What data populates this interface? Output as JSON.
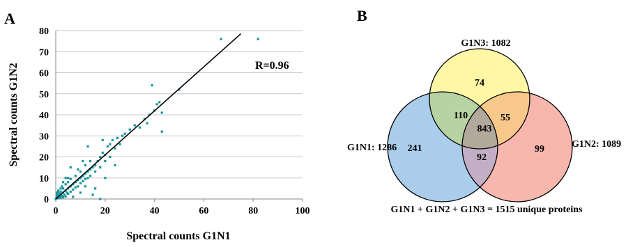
{
  "chart_data": [
    {
      "type": "scatter",
      "panel_label": "A",
      "xlabel": "Spectral counts G1N1",
      "ylabel": "Spectral counts G1N2",
      "xlim": [
        0,
        100
      ],
      "ylim": [
        0,
        80
      ],
      "xticks": [
        0,
        20,
        40,
        60,
        80,
        100
      ],
      "yticks": [
        0,
        10,
        20,
        30,
        40,
        50,
        60,
        70,
        80
      ],
      "grid": "horizontal",
      "point_color": "#17969A",
      "annotation": "R=0.96",
      "fit_line": {
        "x": [
          0,
          75
        ],
        "y": [
          0,
          78.5
        ]
      },
      "points": [
        [
          0,
          0
        ],
        [
          0.3,
          0.5
        ],
        [
          0.5,
          1
        ],
        [
          1,
          0.4
        ],
        [
          1,
          1.5
        ],
        [
          1.5,
          1
        ],
        [
          0.5,
          2
        ],
        [
          2,
          0.5
        ],
        [
          2,
          2
        ],
        [
          1.5,
          2.5
        ],
        [
          2.5,
          1.5
        ],
        [
          0.4,
          3
        ],
        [
          3,
          0.8
        ],
        [
          3,
          3
        ],
        [
          2,
          3.5
        ],
        [
          3.5,
          2
        ],
        [
          4,
          4
        ],
        [
          1,
          4
        ],
        [
          4,
          1.2
        ],
        [
          4.5,
          3
        ],
        [
          3,
          5
        ],
        [
          5,
          5
        ],
        [
          5,
          2.5
        ],
        [
          2.5,
          6
        ],
        [
          6,
          6
        ],
        [
          6,
          3.5
        ],
        [
          4,
          7
        ],
        [
          7,
          7
        ],
        [
          7,
          4.5
        ],
        [
          5,
          8
        ],
        [
          8,
          8
        ],
        [
          8,
          5.5
        ],
        [
          6,
          9.5
        ],
        [
          9,
          9
        ],
        [
          9,
          6
        ],
        [
          10,
          10
        ],
        [
          10,
          7.5
        ],
        [
          8,
          11
        ],
        [
          11,
          11
        ],
        [
          11,
          8.5
        ],
        [
          12,
          12
        ],
        [
          12,
          9.5
        ],
        [
          10,
          13
        ],
        [
          13,
          13
        ],
        [
          13,
          10
        ],
        [
          9,
          14
        ],
        [
          14,
          14
        ],
        [
          14,
          11
        ],
        [
          12,
          16
        ],
        [
          15,
          15
        ],
        [
          16,
          16
        ],
        [
          16,
          13
        ],
        [
          14,
          18
        ],
        [
          17,
          18
        ],
        [
          18,
          15
        ],
        [
          18,
          20
        ],
        [
          19,
          22
        ],
        [
          20,
          18
        ],
        [
          20,
          21
        ],
        [
          21,
          25
        ],
        [
          22,
          20
        ],
        [
          22,
          26
        ],
        [
          23,
          28
        ],
        [
          24,
          24
        ],
        [
          25,
          29
        ],
        [
          26,
          26
        ],
        [
          27,
          30
        ],
        [
          28,
          31
        ],
        [
          30,
          33
        ],
        [
          32,
          35
        ],
        [
          34,
          34
        ],
        [
          36,
          38
        ],
        [
          38,
          40
        ],
        [
          39,
          54
        ],
        [
          40,
          42
        ],
        [
          41,
          45
        ],
        [
          42,
          46
        ],
        [
          43,
          41
        ],
        [
          43,
          32
        ],
        [
          37,
          36
        ],
        [
          50,
          52
        ],
        [
          67,
          76
        ],
        [
          82,
          76
        ],
        [
          18,
          0
        ],
        [
          16,
          5
        ],
        [
          15,
          2
        ],
        [
          13,
          25
        ],
        [
          6,
          15
        ],
        [
          5,
          10
        ],
        [
          3,
          8
        ],
        [
          2,
          5
        ],
        [
          1,
          3
        ],
        [
          7,
          1
        ],
        [
          10,
          3
        ],
        [
          12,
          6
        ],
        [
          4,
          10
        ],
        [
          20,
          10
        ],
        [
          24,
          16
        ],
        [
          19,
          28
        ],
        [
          11,
          18
        ]
      ]
    },
    {
      "type": "venn",
      "panel_label": "B",
      "sets": [
        {
          "name": "G1N1: 1286",
          "color": "#A9CDEA"
        },
        {
          "name": "G1N2: 1089",
          "color": "#F8B7AE"
        },
        {
          "name": "G1N3: 1082",
          "color": "#FFF7A6"
        }
      ],
      "regions": {
        "only_g1n1": "241",
        "only_g1n2": "99",
        "only_g1n3": "74",
        "g1n1_g1n3": "110",
        "g1n2_g1n3": "55",
        "g1n1_g1n2": "92",
        "all_three": "843"
      },
      "caption": "G1N1 + G1N2 + G1N3 = 1515 unique proteins"
    }
  ]
}
